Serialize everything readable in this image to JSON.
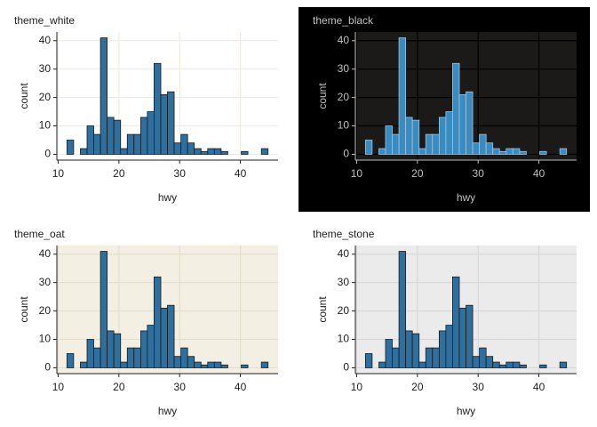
{
  "chart_data": [
    {
      "type": "histogram",
      "title": "theme_white",
      "xlabel": "hwy",
      "ylabel": "count",
      "bins": [
        11.45,
        12.55,
        13.66,
        14.76,
        15.86,
        16.97,
        18.07,
        19.17,
        20.28,
        21.38,
        22.48,
        23.59,
        24.69,
        25.79,
        26.9,
        28.0,
        29.1,
        30.21,
        31.31,
        32.41,
        33.52,
        34.62,
        35.72,
        36.83,
        37.93,
        39.03,
        40.14,
        41.24,
        42.34,
        43.45,
        44.55
      ],
      "values": [
        5,
        0,
        2,
        10,
        7,
        41,
        13,
        12,
        2,
        7,
        7,
        13,
        15,
        32,
        21,
        22,
        4,
        7,
        4,
        2,
        1,
        2,
        2,
        1,
        0,
        0,
        1,
        0,
        0,
        2
      ],
      "xlim": [
        9.79,
        46.2
      ],
      "ylim": [
        -2.05,
        43.05
      ],
      "xticks": [
        10,
        20,
        30,
        40
      ],
      "yticks": [
        0,
        10,
        20,
        30,
        40
      ],
      "color": "#2e6f9e",
      "edge_color": "#1a1a1a",
      "background": "#ffffff",
      "panel_color": "#ffffff",
      "grid_color": "#f0ede0",
      "text_color": "#222222"
    },
    {
      "type": "histogram",
      "title": "theme_black",
      "xlabel": "hwy",
      "ylabel": "count",
      "bins": [
        11.45,
        12.55,
        13.66,
        14.76,
        15.86,
        16.97,
        18.07,
        19.17,
        20.28,
        21.38,
        22.48,
        23.59,
        24.69,
        25.79,
        26.9,
        28.0,
        29.1,
        30.21,
        31.31,
        32.41,
        33.52,
        34.62,
        35.72,
        36.83,
        37.93,
        39.03,
        40.14,
        41.24,
        42.34,
        43.45,
        44.55
      ],
      "values": [
        5,
        0,
        2,
        10,
        7,
        41,
        13,
        12,
        2,
        7,
        7,
        13,
        15,
        32,
        21,
        22,
        4,
        7,
        4,
        2,
        1,
        2,
        2,
        1,
        0,
        0,
        1,
        0,
        0,
        2
      ],
      "xlim": [
        9.79,
        46.2
      ],
      "ylim": [
        -2.05,
        43.05
      ],
      "xticks": [
        10,
        20,
        30,
        40
      ],
      "yticks": [
        0,
        10,
        20,
        30,
        40
      ],
      "color": "#3a8cc0",
      "edge_color": "#9fc6e0",
      "background": "#000000",
      "panel_color": "#1c1a19",
      "grid_color": "#000000",
      "text_color": "#bfbfbf"
    },
    {
      "type": "histogram",
      "title": "theme_oat",
      "xlabel": "hwy",
      "ylabel": "count",
      "bins": [
        11.45,
        12.55,
        13.66,
        14.76,
        15.86,
        16.97,
        18.07,
        19.17,
        20.28,
        21.38,
        22.48,
        23.59,
        24.69,
        25.79,
        26.9,
        28.0,
        29.1,
        30.21,
        31.31,
        32.41,
        33.52,
        34.62,
        35.72,
        36.83,
        37.93,
        39.03,
        40.14,
        41.24,
        42.34,
        43.45,
        44.55
      ],
      "values": [
        5,
        0,
        2,
        10,
        7,
        41,
        13,
        12,
        2,
        7,
        7,
        13,
        15,
        32,
        21,
        22,
        4,
        7,
        4,
        2,
        1,
        2,
        2,
        1,
        0,
        0,
        1,
        0,
        0,
        2
      ],
      "xlim": [
        9.79,
        46.2
      ],
      "ylim": [
        -2.05,
        43.05
      ],
      "xticks": [
        10,
        20,
        30,
        40
      ],
      "yticks": [
        0,
        10,
        20,
        30,
        40
      ],
      "color": "#2e6f9e",
      "edge_color": "#1a1a1a",
      "background": "#ffffff",
      "panel_color": "#f3f0e3",
      "grid_color": "#e4dfc9",
      "text_color": "#222222"
    },
    {
      "type": "histogram",
      "title": "theme_stone",
      "xlabel": "hwy",
      "ylabel": "count",
      "bins": [
        11.45,
        12.55,
        13.66,
        14.76,
        15.86,
        16.97,
        18.07,
        19.17,
        20.28,
        21.38,
        22.48,
        23.59,
        24.69,
        25.79,
        26.9,
        28.0,
        29.1,
        30.21,
        31.31,
        32.41,
        33.52,
        34.62,
        35.72,
        36.83,
        37.93,
        39.03,
        40.14,
        41.24,
        42.34,
        43.45,
        44.55
      ],
      "values": [
        5,
        0,
        2,
        10,
        7,
        41,
        13,
        12,
        2,
        7,
        7,
        13,
        15,
        32,
        21,
        22,
        4,
        7,
        4,
        2,
        1,
        2,
        2,
        1,
        0,
        0,
        1,
        0,
        0,
        2
      ],
      "xlim": [
        9.79,
        46.2
      ],
      "ylim": [
        -2.05,
        43.05
      ],
      "xticks": [
        10,
        20,
        30,
        40
      ],
      "yticks": [
        0,
        10,
        20,
        30,
        40
      ],
      "color": "#2e6f9e",
      "edge_color": "#1a1a1a",
      "background": "#ffffff",
      "panel_color": "#ebebeb",
      "grid_color": "#d8d8d8",
      "text_color": "#222222"
    }
  ]
}
